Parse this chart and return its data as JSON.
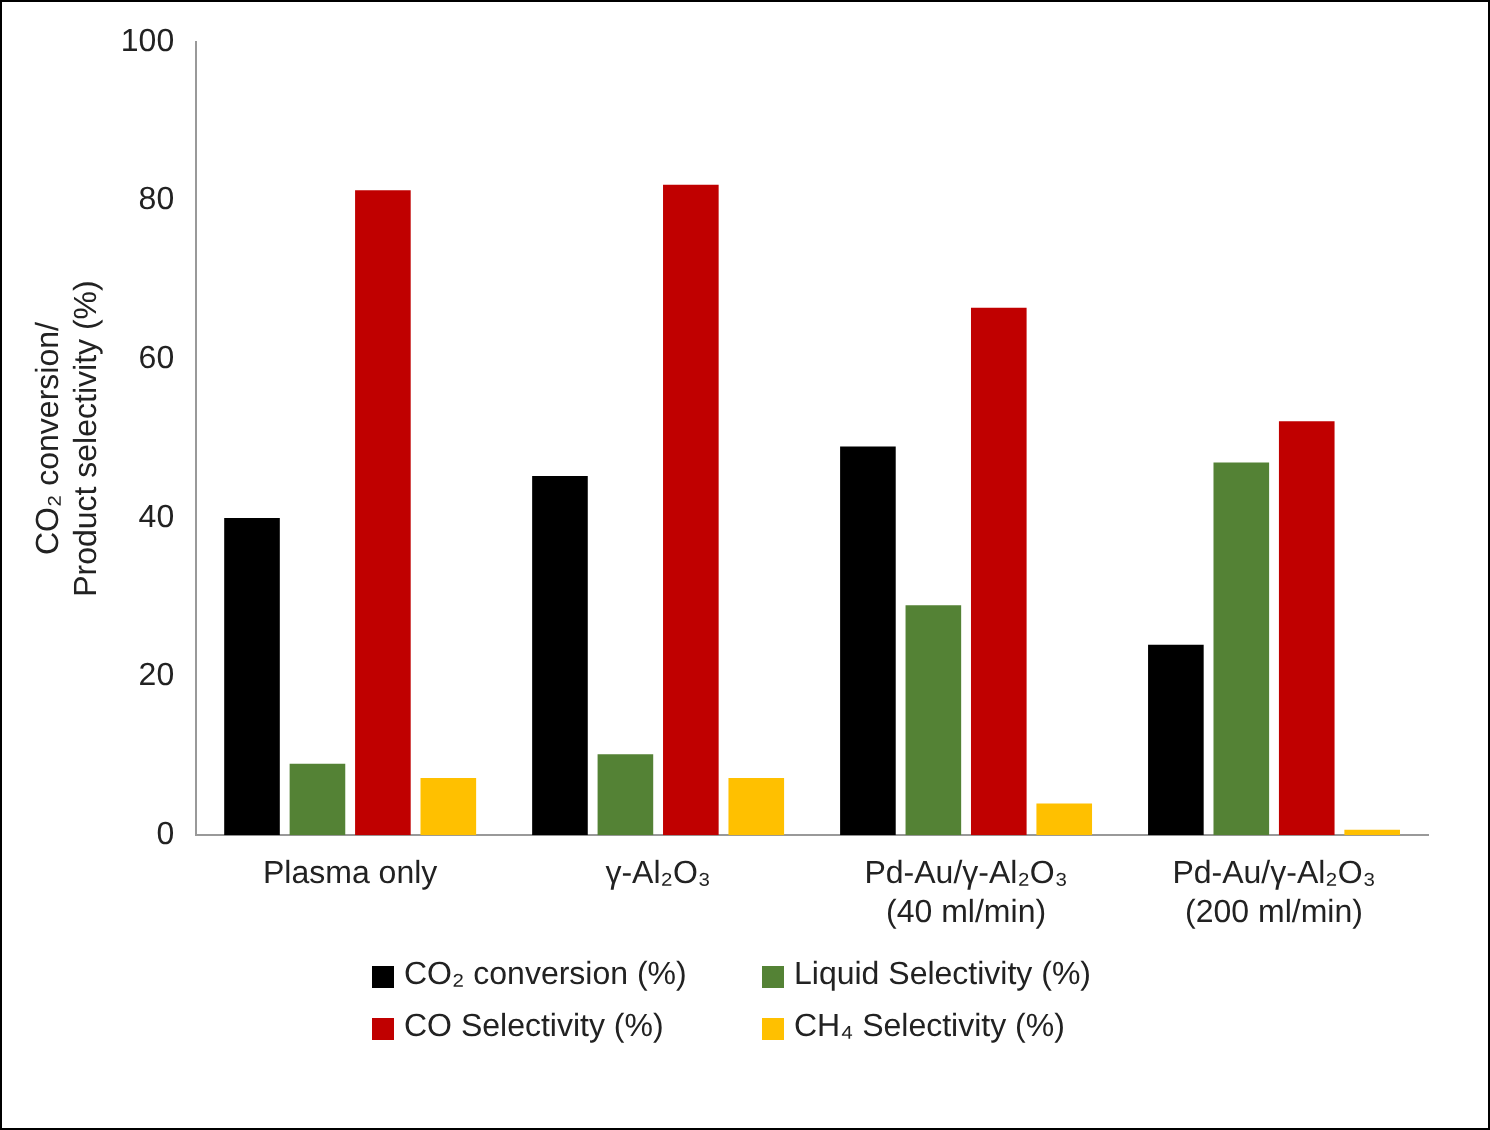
{
  "chart_data": {
    "type": "bar",
    "ylabel": "CO₂ conversion/\nProduct selectivity (%)",
    "categories": [
      "Plasma only",
      "γ-Al₂O₃",
      "Pd-Au/γ-Al₂O₃\n(40 ml/min)",
      "Pd-Au/γ-Al₂O₃\n(200 ml/min)"
    ],
    "series": [
      {
        "name": "CO₂ conversion (%)",
        "color": "#000000",
        "values": [
          40,
          45.3,
          49,
          24
        ]
      },
      {
        "name": "Liquid Selectivity (%)",
        "color": "#548235",
        "values": [
          9,
          10.2,
          29,
          47
        ]
      },
      {
        "name": "CO Selectivity (%)",
        "color": "#c00000",
        "values": [
          81.3,
          82,
          66.5,
          52.2
        ]
      },
      {
        "name": "CH₄ Selectivity (%)",
        "color": "#ffc000",
        "values": [
          7.2,
          7.2,
          4,
          0.7
        ]
      }
    ],
    "ylim": [
      0,
      100
    ],
    "yticks": [
      0,
      20,
      40,
      60,
      80,
      100
    ],
    "grid": false,
    "legend": "bottom"
  }
}
